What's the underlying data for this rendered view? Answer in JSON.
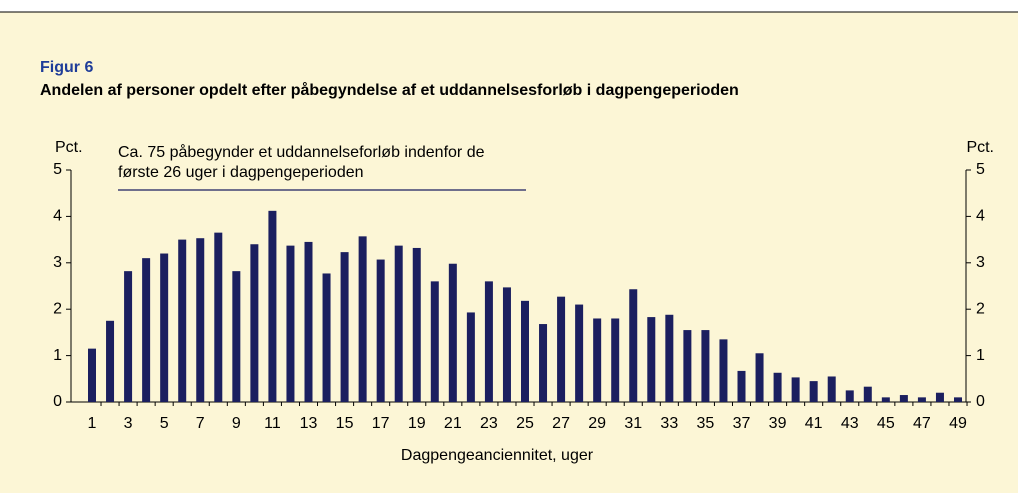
{
  "chart_data": {
    "type": "bar",
    "figure_label": "Figur 6",
    "title": "Andelen af personer opdelt efter påbegyndelse af et uddannelsesforløb i dagpengeperioden",
    "annotation": [
      "Ca. 75 påbegynder et uddannelseforløb indenfor de",
      "første 26 uger i dagpengeperioden"
    ],
    "ylabel": "Pct.",
    "y2label": "Pct.",
    "xlabel": "Dagpengeanciennitet, uger",
    "categories": [
      "1",
      null,
      "3",
      null,
      "5",
      null,
      "7",
      null,
      "9",
      null,
      "11",
      null,
      "13",
      null,
      "15",
      null,
      "17",
      null,
      "19",
      null,
      "21",
      null,
      "23",
      null,
      "25",
      null,
      "27",
      null,
      "29",
      null,
      "31",
      null,
      "33",
      null,
      "35",
      null,
      "37",
      null,
      "39",
      null,
      "41",
      null,
      "43",
      null,
      "45",
      null,
      "47",
      null,
      "49"
    ],
    "values": [
      1.15,
      1.75,
      2.82,
      3.1,
      3.2,
      3.5,
      3.53,
      3.65,
      2.82,
      3.4,
      4.12,
      3.37,
      3.45,
      2.77,
      3.23,
      3.57,
      3.07,
      3.37,
      3.32,
      2.6,
      2.98,
      1.93,
      2.6,
      2.47,
      2.18,
      1.68,
      2.27,
      2.1,
      1.8,
      1.8,
      2.43,
      1.83,
      1.88,
      1.55,
      1.55,
      1.35,
      0.67,
      1.05,
      0.63,
      0.53,
      0.45,
      0.55,
      0.25,
      0.33,
      0.1,
      0.15,
      0.1,
      0.2,
      0.1
    ],
    "color": "#1b1f5f",
    "ylim": [
      0,
      5
    ],
    "yticks": [
      0,
      1,
      2,
      3,
      4,
      5
    ],
    "y2lim": [
      0,
      5
    ],
    "y2ticks": [
      0,
      1,
      2,
      3,
      4,
      5
    ],
    "grid": false
  }
}
